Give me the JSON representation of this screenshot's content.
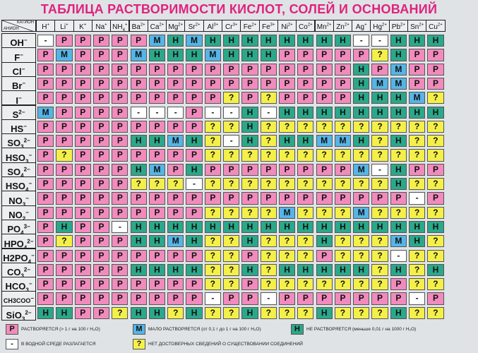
{
  "title": "ТАБЛИЦА РАСТВОРИМОСТИ КИСЛОТ, СОЛЕЙ И ОСНОВАНИЙ",
  "corner": {
    "cation_label": "КАТИОН",
    "anion_label": "АНИОН"
  },
  "cations": [
    {
      "sym": "H",
      "ch": "+"
    },
    {
      "sym": "Li",
      "ch": "+"
    },
    {
      "sym": "K",
      "ch": "+"
    },
    {
      "sym": "Na",
      "ch": "+"
    },
    {
      "sym": "NH",
      "sub": "4",
      "ch": "+"
    },
    {
      "sym": "Ba",
      "ch": "2+"
    },
    {
      "sym": "Ca",
      "ch": "2+"
    },
    {
      "sym": "Mg",
      "ch": "2+"
    },
    {
      "sym": "Sr",
      "ch": "2+"
    },
    {
      "sym": "Al",
      "ch": "3+"
    },
    {
      "sym": "Cr",
      "ch": "3+"
    },
    {
      "sym": "Fe",
      "ch": "2+"
    },
    {
      "sym": "Fe",
      "ch": "3+"
    },
    {
      "sym": "Ni",
      "ch": "2+"
    },
    {
      "sym": "Co",
      "ch": "2+"
    },
    {
      "sym": "Mn",
      "ch": "2+"
    },
    {
      "sym": "Zn",
      "ch": "2+"
    },
    {
      "sym": "Ag",
      "ch": "+"
    },
    {
      "sym": "Hg",
      "ch": "2+"
    },
    {
      "sym": "Pb",
      "ch": "2+"
    },
    {
      "sym": "Sn",
      "ch": "2+"
    },
    {
      "sym": "Cu",
      "ch": "2+"
    }
  ],
  "anions": [
    {
      "sym": "OH",
      "ch": "−"
    },
    {
      "sym": "F",
      "ch": "−"
    },
    {
      "sym": "Cl",
      "ch": "−"
    },
    {
      "sym": "Br",
      "ch": "−"
    },
    {
      "sym": "I",
      "ch": "−"
    },
    {
      "sym": "S",
      "ch": "2−"
    },
    {
      "sym": "HS",
      "ch": "−"
    },
    {
      "sym": "SO",
      "sub": "3",
      "ch": "2−"
    },
    {
      "sym": "HSO",
      "sub": "3",
      "ch": "−"
    },
    {
      "sym": "SO",
      "sub": "4",
      "ch": "2−"
    },
    {
      "sym": "HSO",
      "sub": "4",
      "ch": "−"
    },
    {
      "sym": "NO",
      "sub": "3",
      "ch": "−"
    },
    {
      "sym": "NO",
      "sub": "2",
      "ch": "−"
    },
    {
      "sym": "PO",
      "sub": "4",
      "ch": "3−"
    },
    {
      "sym": "HPO",
      "sub": "4",
      "ch": "2−"
    },
    {
      "sym": "H2PO",
      "sub": "4",
      "ch": "−"
    },
    {
      "sym": "CO",
      "sub": "3",
      "ch": "2−"
    },
    {
      "sym": "HCO",
      "sub": "3",
      "ch": "−"
    },
    {
      "sym": "CH3COO",
      "ch": "−"
    },
    {
      "sym": "SiO",
      "sub": "3",
      "ch": "2−"
    }
  ],
  "rows": [
    [
      "-",
      "P",
      "P",
      "P",
      "P",
      "P",
      "M",
      "H",
      "M",
      "H",
      "H",
      "H",
      "H",
      "H",
      "H",
      "H",
      "H",
      "-",
      "-",
      "H",
      "H",
      "H"
    ],
    [
      "P",
      "M",
      "P",
      "P",
      "P",
      "M",
      "H",
      "H",
      "H",
      "M",
      "H",
      "H",
      "H",
      "P",
      "P",
      "P",
      "P",
      "P",
      "?",
      "H",
      "P",
      "P"
    ],
    [
      "P",
      "P",
      "P",
      "P",
      "P",
      "P",
      "P",
      "P",
      "P",
      "P",
      "P",
      "P",
      "P",
      "P",
      "P",
      "P",
      "P",
      "H",
      "P",
      "M",
      "P",
      "P"
    ],
    [
      "P",
      "P",
      "P",
      "P",
      "P",
      "P",
      "P",
      "P",
      "P",
      "P",
      "P",
      "P",
      "P",
      "P",
      "P",
      "P",
      "P",
      "H",
      "M",
      "M",
      "P",
      "P"
    ],
    [
      "P",
      "P",
      "P",
      "P",
      "P",
      "P",
      "P",
      "P",
      "P",
      "P",
      "?",
      "P",
      "?",
      "P",
      "P",
      "P",
      "P",
      "H",
      "H",
      "H",
      "M",
      "?"
    ],
    [
      "M",
      "P",
      "P",
      "P",
      "P",
      "-",
      "-",
      "-",
      "P",
      "-",
      "-",
      "H",
      "-",
      "H",
      "H",
      "H",
      "H",
      "H",
      "H",
      "H",
      "H",
      "H"
    ],
    [
      "P",
      "P",
      "P",
      "P",
      "P",
      "P",
      "P",
      "P",
      "P",
      "?",
      "?",
      "H",
      "?",
      "?",
      "?",
      "?",
      "?",
      "?",
      "?",
      "?",
      "?",
      "?"
    ],
    [
      "P",
      "P",
      "P",
      "P",
      "P",
      "H",
      "H",
      "M",
      "H",
      "?",
      "-",
      "H",
      "?",
      "H",
      "H",
      "M",
      "M",
      "H",
      "?",
      "H",
      "?",
      "?"
    ],
    [
      "P",
      "?",
      "P",
      "P",
      "P",
      "P",
      "P",
      "P",
      "P",
      "?",
      "?",
      "?",
      "?",
      "?",
      "?",
      "?",
      "?",
      "?",
      "?",
      "?",
      "?",
      "?"
    ],
    [
      "P",
      "P",
      "P",
      "P",
      "P",
      "H",
      "M",
      "P",
      "H",
      "P",
      "P",
      "P",
      "P",
      "P",
      "P",
      "P",
      "P",
      "M",
      "-",
      "H",
      "P",
      "P"
    ],
    [
      "P",
      "P",
      "P",
      "P",
      "P",
      "?",
      "?",
      "?",
      "-",
      "?",
      "?",
      "?",
      "?",
      "?",
      "?",
      "?",
      "?",
      "?",
      "?",
      "H",
      "?",
      "?"
    ],
    [
      "P",
      "P",
      "P",
      "P",
      "P",
      "P",
      "P",
      "P",
      "P",
      "P",
      "P",
      "P",
      "P",
      "P",
      "P",
      "P",
      "P",
      "P",
      "P",
      "P",
      "-",
      "P"
    ],
    [
      "P",
      "P",
      "P",
      "P",
      "P",
      "P",
      "P",
      "P",
      "P",
      "?",
      "?",
      "?",
      "?",
      "M",
      "?",
      "?",
      "?",
      "M",
      "?",
      "?",
      "?",
      "?"
    ],
    [
      "P",
      "H",
      "P",
      "P",
      "-",
      "H",
      "H",
      "H",
      "H",
      "H",
      "H",
      "H",
      "H",
      "H",
      "H",
      "H",
      "H",
      "H",
      "H",
      "H",
      "H",
      "H"
    ],
    [
      "P",
      "?",
      "P",
      "P",
      "P",
      "H",
      "H",
      "M",
      "H",
      "?",
      "?",
      "H",
      "?",
      "?",
      "?",
      "H",
      "?",
      "?",
      "?",
      "M",
      "H",
      "?"
    ],
    [
      "P",
      "P",
      "P",
      "P",
      "P",
      "P",
      "P",
      "P",
      "P",
      "?",
      "?",
      "P",
      "?",
      "?",
      "?",
      "P",
      "?",
      "?",
      "?",
      "-",
      "?",
      "?"
    ],
    [
      "P",
      "P",
      "P",
      "P",
      "P",
      "H",
      "H",
      "H",
      "H",
      "?",
      "?",
      "H",
      "?",
      "H",
      "H",
      "H",
      "H",
      "H",
      "?",
      "H",
      "?",
      "H"
    ],
    [
      "P",
      "P",
      "P",
      "P",
      "P",
      "P",
      "P",
      "P",
      "P",
      "?",
      "?",
      "P",
      "?",
      "?",
      "?",
      "?",
      "?",
      "?",
      "?",
      "P",
      "?",
      "?"
    ],
    [
      "P",
      "P",
      "P",
      "P",
      "P",
      "P",
      "P",
      "P",
      "P",
      "-",
      "P",
      "P",
      "-",
      "P",
      "P",
      "P",
      "P",
      "P",
      "P",
      "P",
      "-",
      "P"
    ],
    [
      "H",
      "H",
      "P",
      "P",
      "?",
      "H",
      "H",
      "?",
      "H",
      "?",
      "?",
      "H",
      "?",
      "?",
      "?",
      "H",
      "?",
      "?",
      "?",
      "H",
      "?",
      "?"
    ]
  ],
  "legend": [
    {
      "code": "P",
      "text": "РАСТВОРЯЕТСЯ (> 1 г на 100 г H₂O)"
    },
    {
      "code": "M",
      "text": "МАЛО РАСТВОРЯЕТСЯ (от 0,1 г до 1 г на 100 г H₂O)"
    },
    {
      "code": "H",
      "text": "НЕ РАСТВОРЯЕТСЯ (меньше 0,01 г на 1000 г H₂O)"
    },
    {
      "code": "-",
      "text": "В ВОДНОЙ СРЕДЕ РАЗЛАГАЕТСЯ"
    },
    {
      "code": "?",
      "text": "НЕТ ДОСТОВЕРНЫХ СВЕДЕНИЙ О СУЩЕСТВОВАНИИ СОЕДИНЕНИЙ"
    }
  ]
}
